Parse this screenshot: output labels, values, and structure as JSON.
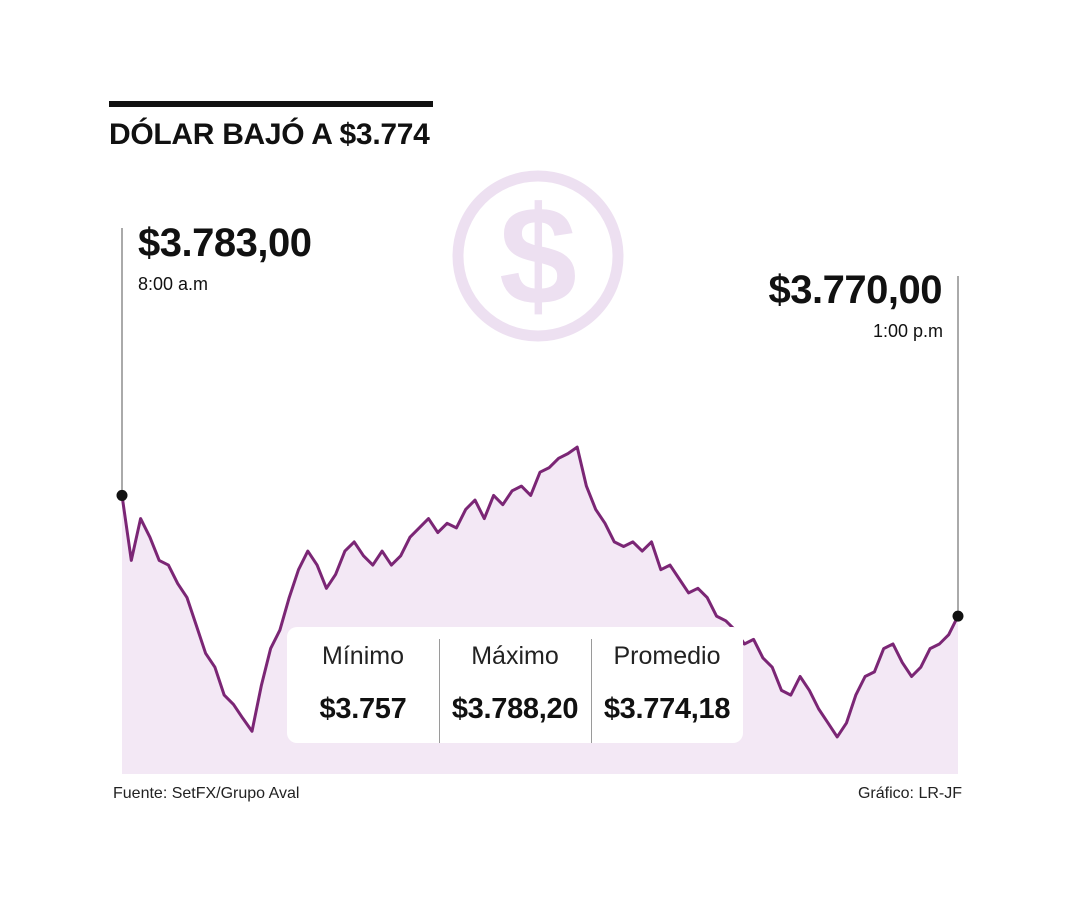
{
  "header": {
    "title": "DÓLAR BAJÓ A $3.774"
  },
  "colors": {
    "line": "#7b2675",
    "area": "#f3e8f5",
    "watermark": "#ede0f1",
    "text": "#111111"
  },
  "icons": {
    "watermark": "dollar-coin-icon"
  },
  "annotations": {
    "start": {
      "price": "$3.783,00",
      "time": "8:00 a.m"
    },
    "end": {
      "price": "$3.770,00",
      "time": "1:00 p.m"
    }
  },
  "stats": [
    {
      "label": "Mínimo",
      "value": "$3.757"
    },
    {
      "label": "Máximo",
      "value": "$3.788,20"
    },
    {
      "label": "Promedio",
      "value": "$3.774,18"
    }
  ],
  "footer": {
    "source": "Fuente: SetFX/Grupo Aval",
    "credit": "Gráfico: LR-JF"
  },
  "chart_data": {
    "type": "area",
    "x_start": "8:00 a.m",
    "x_end": "1:00 p.m",
    "ylim": [
      3753,
      3795
    ],
    "grid": false,
    "values": [
      3783.0,
      3776.0,
      3780.5,
      3778.5,
      3776.0,
      3775.5,
      3773.5,
      3772.0,
      3769.0,
      3766.0,
      3764.5,
      3761.5,
      3760.5,
      3759.0,
      3757.6,
      3762.5,
      3766.5,
      3768.5,
      3772.0,
      3775.0,
      3777.0,
      3775.5,
      3773.0,
      3774.5,
      3777.0,
      3778.0,
      3776.5,
      3775.5,
      3777.0,
      3775.5,
      3776.5,
      3778.5,
      3779.5,
      3780.5,
      3779.0,
      3780.0,
      3779.5,
      3781.5,
      3782.5,
      3780.5,
      3783.0,
      3782.0,
      3783.5,
      3784.0,
      3783.0,
      3785.5,
      3786.0,
      3787.0,
      3787.5,
      3788.2,
      3784.0,
      3781.5,
      3780.0,
      3778.0,
      3777.5,
      3778.0,
      3777.0,
      3778.0,
      3775.0,
      3775.5,
      3774.0,
      3772.5,
      3773.0,
      3772.0,
      3770.0,
      3769.5,
      3768.5,
      3767.0,
      3767.5,
      3765.5,
      3764.5,
      3762.0,
      3761.5,
      3763.5,
      3762.0,
      3760.0,
      3758.5,
      3757.0,
      3758.5,
      3761.5,
      3763.5,
      3764.0,
      3766.5,
      3767.0,
      3765.0,
      3763.5,
      3764.5,
      3766.5,
      3767.0,
      3768.0,
      3770.0
    ]
  }
}
